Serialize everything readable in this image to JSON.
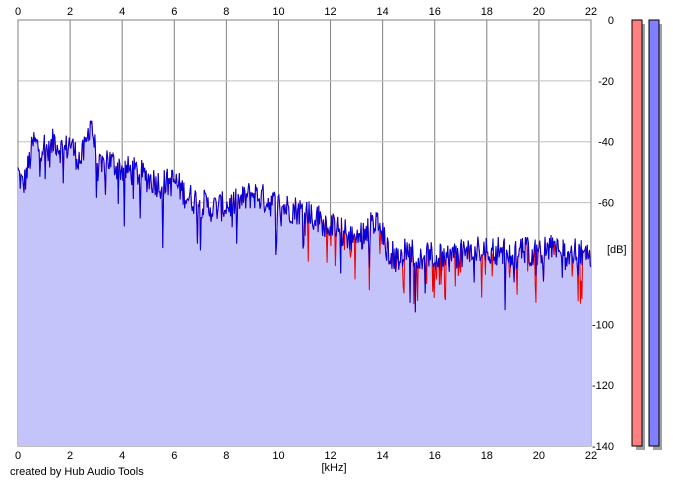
{
  "chart_data": {
    "type": "area",
    "title": "",
    "xlabel": "[kHz]",
    "ylabel": "[dB]",
    "xlim": [
      0,
      22
    ],
    "ylim": [
      -140,
      0
    ],
    "x_ticks": [
      0,
      2,
      4,
      6,
      8,
      10,
      12,
      14,
      16,
      18,
      20,
      22
    ],
    "y_ticks": [
      0,
      -20,
      -40,
      -60,
      -80,
      -100,
      -120,
      -140
    ],
    "y_ticks_labeled": [
      0,
      -20,
      -40,
      -60,
      -100,
      -120,
      -140
    ],
    "grid": true,
    "colors": {
      "fill": "#c4c4fa",
      "line_blue": "#0000dd",
      "line_red": "#ee0000",
      "grid": "#c0c0c0",
      "grid_major": "#808080",
      "meter_left": "#ff8080",
      "meter_right": "#8080ff"
    },
    "series": [
      {
        "x": [
          0.0,
          0.2,
          0.4,
          0.6,
          0.8,
          1.0,
          1.2,
          1.4,
          1.6,
          1.8,
          2.0,
          2.2,
          2.4,
          2.6,
          2.8,
          3.0,
          3.2,
          3.4,
          3.6,
          3.8,
          4.0,
          4.5,
          5.0,
          5.5,
          6.0,
          6.5,
          7.0,
          7.5,
          8.0,
          8.5,
          9.0,
          9.5,
          10.0,
          10.5,
          11.0,
          11.5,
          12.0,
          12.5,
          13.0,
          13.5,
          13.8,
          14.0,
          14.2,
          14.5,
          15.0,
          15.5,
          16.0,
          16.5,
          17.0,
          17.5,
          18.0,
          18.5,
          19.0,
          19.5,
          20.0,
          20.5,
          21.0,
          21.5,
          22.0
        ],
        "values": [
          -50,
          -55,
          -48,
          -40,
          -42,
          -41,
          -44,
          -39,
          -42,
          -43,
          -40,
          -44,
          -46,
          -42,
          -32,
          -45,
          -50,
          -45,
          -47,
          -48,
          -49,
          -50,
          -52,
          -54,
          -53,
          -58,
          -60,
          -62,
          -61,
          -60,
          -57,
          -59,
          -61,
          -62,
          -63,
          -65,
          -68,
          -70,
          -72,
          -68,
          -67,
          -71,
          -76,
          -78,
          -76,
          -77,
          -78,
          -78,
          -77,
          -76,
          -75,
          -76,
          -77,
          -76,
          -76,
          -75,
          -76,
          -77,
          -78
        ]
      }
    ]
  },
  "meters": {
    "left": {
      "level": 1.0
    },
    "right": {
      "level": 1.0
    }
  },
  "credit": "created by Hub Audio Tools"
}
